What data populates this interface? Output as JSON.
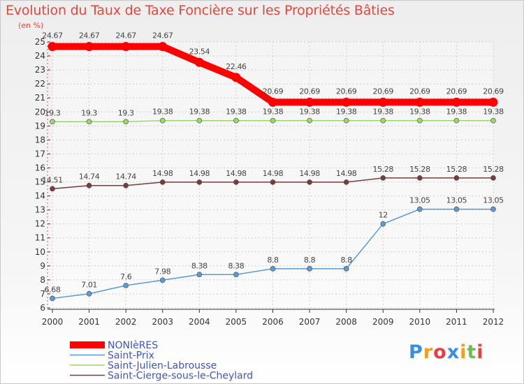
{
  "chart_data": {
    "type": "line",
    "title": "Evolution du Taux de Taxe Foncière sur les Propriétés Bâties",
    "ylabel": "(en %)",
    "xlabel": "",
    "ylim": [
      6,
      25
    ],
    "yticks": [
      "6",
      "7",
      "8",
      "9",
      "10",
      "11",
      "12",
      "13",
      "14",
      "15",
      "16",
      "17",
      "18",
      "19",
      "20",
      "21",
      "22",
      "23",
      "24",
      "25"
    ],
    "categories": [
      "2000",
      "2001",
      "2002",
      "2003",
      "2004",
      "2005",
      "2006",
      "2007",
      "2008",
      "2009",
      "2010",
      "2011",
      "2012"
    ],
    "series": [
      {
        "name": "NONIèRES",
        "color": "#ff0000",
        "values": [
          24.67,
          24.67,
          24.67,
          24.67,
          23.54,
          22.46,
          20.69,
          20.69,
          20.69,
          20.69,
          20.69,
          20.69,
          20.69
        ],
        "labels": [
          "24.67",
          "24.67",
          "24.67",
          "24.67",
          "23.54",
          "22.46",
          "20.69",
          "20.69",
          "20.69",
          "20.69",
          "20.69",
          "20.69",
          "20.69"
        ]
      },
      {
        "name": "Saint-Prix",
        "color": "#5b9bd5",
        "values": [
          6.68,
          7.01,
          7.6,
          7.98,
          8.38,
          8.38,
          8.8,
          8.8,
          8.8,
          12,
          13.05,
          13.05,
          13.05
        ],
        "labels": [
          "6.68",
          "7.01",
          "7.6",
          "7.98",
          "8.38",
          "8.38",
          "8.8",
          "8.8",
          "8.8",
          "12",
          "13.05",
          "13.05",
          "13.05"
        ]
      },
      {
        "name": "Saint-Julien-Labrousse",
        "color": "#9ad86a",
        "values": [
          19.3,
          19.3,
          19.3,
          19.38,
          19.38,
          19.38,
          19.38,
          19.38,
          19.38,
          19.38,
          19.38,
          19.38,
          19.38
        ],
        "labels": [
          "19.3",
          "19.3",
          "19.3",
          "19.38",
          "19.38",
          "19.38",
          "19.38",
          "19.38",
          "19.38",
          "19.38",
          "19.38",
          "19.38",
          "19.38"
        ]
      },
      {
        "name": "Saint-Cierge-sous-le-Cheylard",
        "color": "#7a3b3b",
        "values": [
          14.51,
          14.74,
          14.74,
          14.98,
          14.98,
          14.98,
          14.98,
          14.98,
          14.98,
          15.28,
          15.28,
          15.28,
          15.28
        ],
        "labels": [
          "14.51",
          "14.74",
          "14.74",
          "14.98",
          "14.98",
          "14.98",
          "14.98",
          "14.98",
          "14.98",
          "15.28",
          "15.28",
          "15.28",
          "15.28"
        ]
      }
    ],
    "legend_position": "bottom-left",
    "grid": true
  },
  "logo": {
    "text": "Proxiti",
    "letters": [
      "P",
      "r",
      "o",
      "x",
      "i",
      "t",
      "i"
    ],
    "colors": [
      "#3a8ee6",
      "#f0a020",
      "#e84040",
      "#3a8ee6",
      "#f0a020",
      "#6cc04a",
      "#e84040"
    ]
  }
}
